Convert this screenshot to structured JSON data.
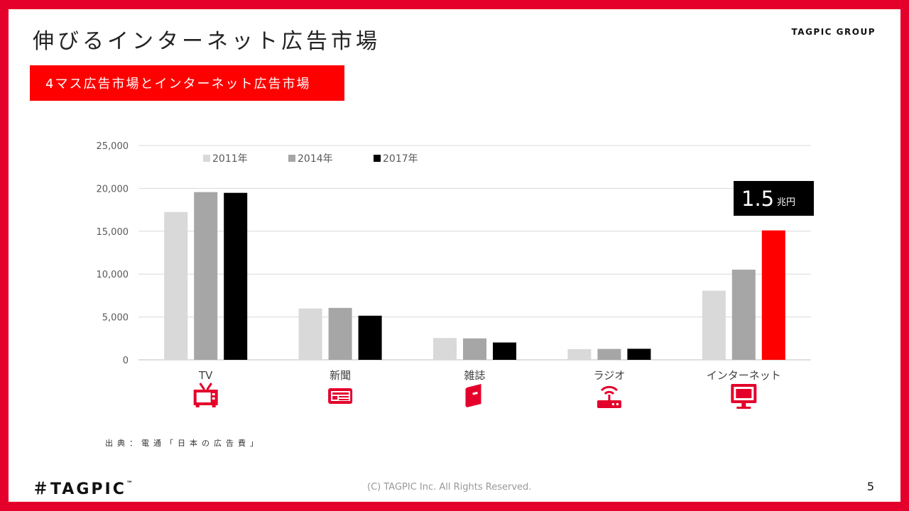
{
  "slide": {
    "title": "伸びるインターネット広告市場",
    "brand": "TAGPIC GROUP",
    "banner": "4マス広告市場とインターネット広告市場",
    "source": "出典：電通「日本の広告費」",
    "logo": "＃TAGPIC",
    "logo_tm": "™",
    "copyright": "(C) TAGPIC Inc.  All Rights Reserved.",
    "page_number": "5"
  },
  "chart_data": {
    "type": "bar",
    "title": "",
    "xlabel": "",
    "ylabel": "",
    "categories": [
      "TV",
      "新聞",
      "雑誌",
      "ラジオ",
      "インターネット"
    ],
    "series": [
      {
        "name": "2011年",
        "color": "#d9d9d9",
        "values": [
          17237,
          5990,
          2542,
          1247,
          8062
        ]
      },
      {
        "name": "2014年",
        "color": "#a6a6a6",
        "values": [
          19564,
          6057,
          2500,
          1272,
          10519
        ]
      },
      {
        "name": "2017年",
        "color": "#000000",
        "values": [
          19478,
          5147,
          2023,
          1290,
          15094
        ]
      }
    ],
    "highlight": {
      "series": 2,
      "category": 4,
      "color": "#ff0000"
    },
    "ylim": [
      0,
      25000
    ],
    "yticks": [
      "0",
      "5,000",
      "10,000",
      "15,000",
      "20,000",
      "25,000"
    ],
    "ytick_values": [
      0,
      5000,
      10000,
      15000,
      20000,
      25000
    ],
    "grid": true,
    "legend": "top-left",
    "callout": {
      "value": "1.5",
      "unit": "兆円"
    },
    "category_icons": [
      "tv-icon",
      "newspaper-icon",
      "magazine-icon",
      "radio-router-icon",
      "monitor-icon"
    ],
    "icon_color": "#e4002b"
  }
}
